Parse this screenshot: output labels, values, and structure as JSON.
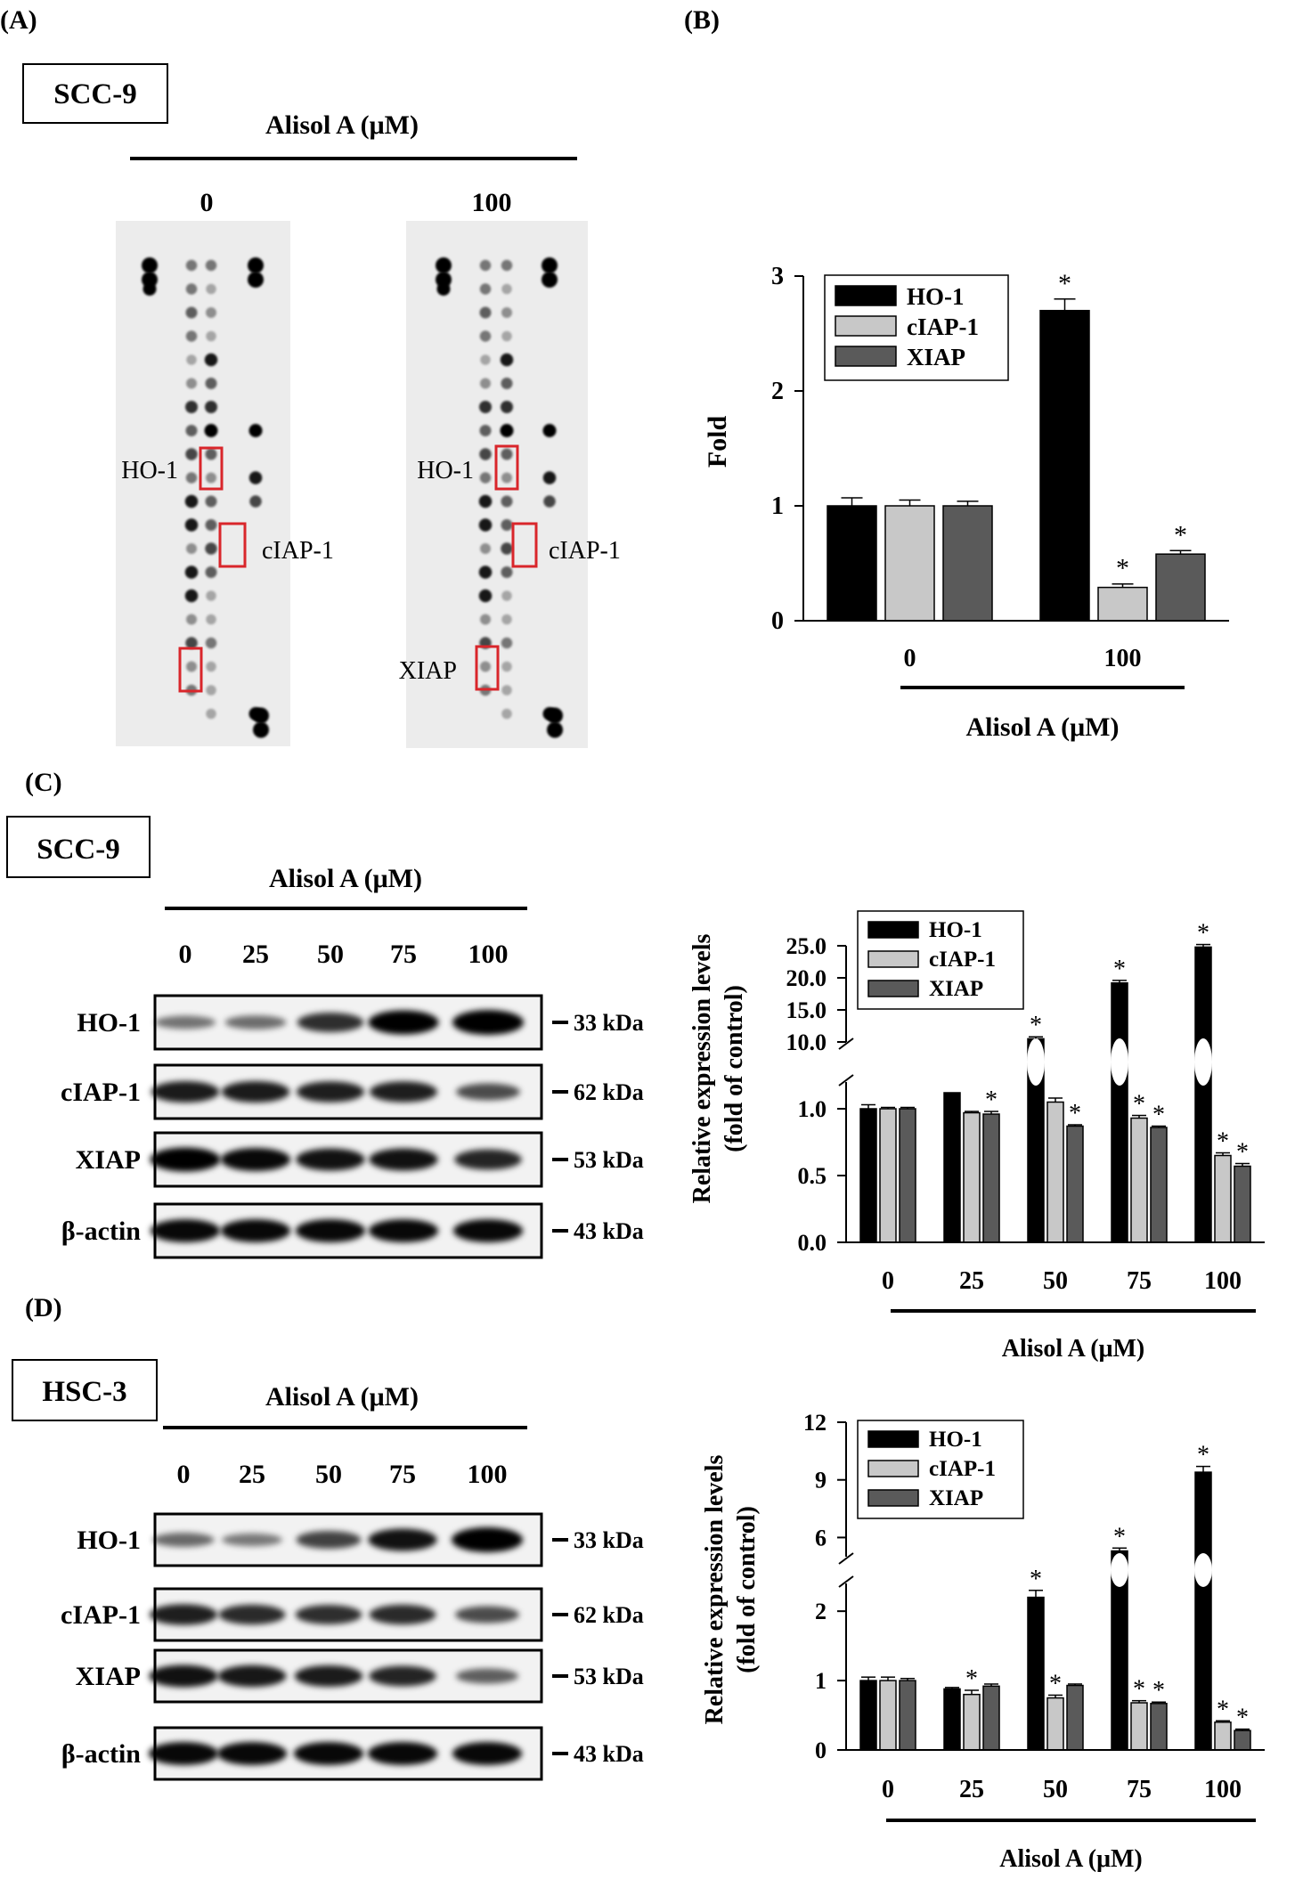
{
  "panels": {
    "A": {
      "letter": "(A)",
      "cell_line": "SCC-9",
      "treatment_label": "Alisol A (μM)",
      "doses": [
        "0",
        "100"
      ],
      "spot_labels": {
        "ho1": "HO-1",
        "ciap1": "cIAP-1",
        "xiap": "XIAP"
      }
    },
    "B": {
      "letter": "(B)"
    },
    "C": {
      "letter": "(C)",
      "cell_line": "SCC-9",
      "treatment_label": "Alisol A (μM)",
      "doses": [
        "0",
        "25",
        "50",
        "75",
        "100"
      ],
      "blots": [
        {
          "protein": "HO-1",
          "size": "33 kDa",
          "intensity": [
            0.35,
            0.38,
            0.7,
            0.95,
            1.0
          ]
        },
        {
          "protein": "cIAP-1",
          "size": "62 kDa",
          "intensity": [
            0.8,
            0.8,
            0.78,
            0.78,
            0.55
          ]
        },
        {
          "protein": "XIAP",
          "size": "53 kDa",
          "intensity": [
            0.95,
            0.9,
            0.85,
            0.85,
            0.75
          ]
        },
        {
          "protein": "β-actin",
          "size": "43 kDa",
          "intensity": [
            0.9,
            0.9,
            0.9,
            0.9,
            0.9
          ]
        }
      ]
    },
    "D": {
      "letter": "(D)",
      "cell_line": "HSC-3",
      "treatment_label": "Alisol A (μM)",
      "doses": [
        "0",
        "25",
        "50",
        "75",
        "100"
      ],
      "blots": [
        {
          "protein": "HO-1",
          "size": "33 kDa",
          "intensity": [
            0.4,
            0.32,
            0.6,
            0.85,
            1.0
          ]
        },
        {
          "protein": "cIAP-1",
          "size": "62 kDa",
          "intensity": [
            0.78,
            0.72,
            0.7,
            0.72,
            0.55
          ]
        },
        {
          "protein": "XIAP",
          "size": "53 kDa",
          "intensity": [
            0.85,
            0.82,
            0.8,
            0.75,
            0.45
          ]
        },
        {
          "protein": "β-actin",
          "size": "43 kDa",
          "intensity": [
            0.9,
            0.9,
            0.9,
            0.9,
            0.9
          ]
        }
      ]
    }
  },
  "colors": {
    "ho1": "#000000",
    "ciap1": "#c8c8c8",
    "xiap": "#5a5a5a",
    "highlight_box": "#d9262b"
  },
  "chart_data": [
    {
      "id": "B",
      "type": "bar",
      "title": "",
      "xlabel": "Alisol A (μM)",
      "ylabel": "Fold",
      "categories": [
        "0",
        "100"
      ],
      "ylim": [
        0,
        3
      ],
      "yticks": [
        "0",
        "1",
        "2",
        "3"
      ],
      "legend": "top-left",
      "series": [
        {
          "name": "HO-1",
          "values": [
            1.0,
            2.7
          ],
          "errors": [
            0.07,
            0.1
          ],
          "sig": [
            false,
            true
          ]
        },
        {
          "name": "cIAP-1",
          "values": [
            1.0,
            0.29
          ],
          "errors": [
            0.05,
            0.03
          ],
          "sig": [
            false,
            true
          ]
        },
        {
          "name": "XIAP",
          "values": [
            1.0,
            0.58
          ],
          "errors": [
            0.04,
            0.03
          ],
          "sig": [
            false,
            true
          ]
        }
      ]
    },
    {
      "id": "C",
      "type": "bar",
      "title": "",
      "xlabel": "Alisol A (μM)",
      "ylabel": "Relative expression levels",
      "ylabel2": "(fold of control)",
      "categories": [
        "0",
        "25",
        "50",
        "75",
        "100"
      ],
      "axis_break": true,
      "lower_range": [
        0,
        1.2
      ],
      "upper_range": [
        10,
        25
      ],
      "lower_ticks": [
        "0.0",
        "0.5",
        "1.0"
      ],
      "upper_ticks": [
        "10.0",
        "15.0",
        "20.0",
        "25.0"
      ],
      "legend": "top-left",
      "series": [
        {
          "name": "HO-1",
          "values": [
            1.0,
            1.12,
            10.5,
            19.2,
            24.8
          ],
          "errors": [
            0.03,
            0.08,
            0.3,
            0.4,
            0.4
          ],
          "sig": [
            false,
            false,
            true,
            true,
            true
          ]
        },
        {
          "name": "cIAP-1",
          "values": [
            1.0,
            0.97,
            1.05,
            0.93,
            0.65
          ],
          "errors": [
            0.01,
            0.01,
            0.03,
            0.02,
            0.02
          ],
          "sig": [
            false,
            false,
            false,
            true,
            true
          ]
        },
        {
          "name": "XIAP",
          "values": [
            1.0,
            0.96,
            0.87,
            0.86,
            0.57
          ],
          "errors": [
            0.01,
            0.02,
            0.01,
            0.01,
            0.02
          ],
          "sig": [
            false,
            true,
            true,
            true,
            true
          ]
        }
      ]
    },
    {
      "id": "D",
      "type": "bar",
      "title": "",
      "xlabel": "Alisol A (μM)",
      "ylabel": "Relative expression levels",
      "ylabel2": "(fold of control)",
      "categories": [
        "0",
        "25",
        "50",
        "75",
        "100"
      ],
      "axis_break": true,
      "lower_range": [
        0,
        2.4
      ],
      "upper_range": [
        5,
        12
      ],
      "lower_ticks": [
        "0",
        "1",
        "2"
      ],
      "upper_ticks": [
        "6",
        "9",
        "12"
      ],
      "legend": "top-left",
      "series": [
        {
          "name": "HO-1",
          "values": [
            1.0,
            0.88,
            2.2,
            5.3,
            9.4
          ],
          "errors": [
            0.05,
            0.02,
            0.1,
            0.15,
            0.3
          ],
          "sig": [
            false,
            false,
            true,
            true,
            true
          ]
        },
        {
          "name": "cIAP-1",
          "values": [
            1.0,
            0.8,
            0.75,
            0.68,
            0.4
          ],
          "errors": [
            0.05,
            0.06,
            0.04,
            0.03,
            0.02
          ],
          "sig": [
            false,
            true,
            true,
            true,
            true
          ]
        },
        {
          "name": "XIAP",
          "values": [
            1.0,
            0.92,
            0.93,
            0.67,
            0.28
          ],
          "errors": [
            0.03,
            0.03,
            0.02,
            0.02,
            0.02
          ],
          "sig": [
            false,
            false,
            false,
            true,
            true
          ]
        }
      ]
    }
  ]
}
